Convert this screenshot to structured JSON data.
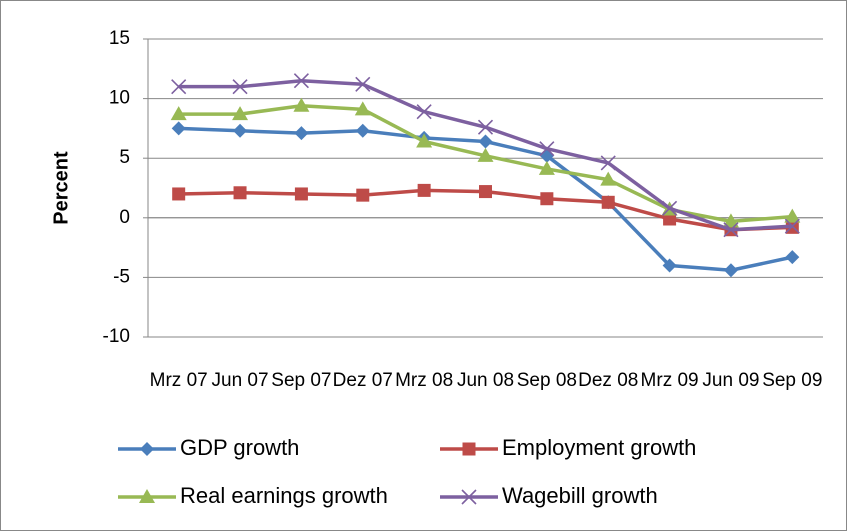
{
  "chart_data": {
    "type": "line",
    "categories": [
      "Mrz 07",
      "Jun 07",
      "Sep 07",
      "Dez 07",
      "Mrz 08",
      "Jun 08",
      "Sep 08",
      "Dez 08",
      "Mrz 09",
      "Jun 09",
      "Sep 09"
    ],
    "y_label": "Percent",
    "ylim": [
      -10,
      15
    ],
    "yticks": [
      -10,
      -5,
      0,
      5,
      10,
      15
    ],
    "grid": true,
    "series": [
      {
        "name": "GDP growth",
        "color": "#4a7ebb",
        "marker": "diamond",
        "values": [
          7.5,
          7.3,
          7.1,
          7.3,
          6.7,
          6.4,
          5.2,
          1.3,
          -4.0,
          -4.4,
          -3.3
        ]
      },
      {
        "name": "Employment growth",
        "color": "#be4b48",
        "marker": "square",
        "values": [
          2.0,
          2.1,
          2.0,
          1.9,
          2.3,
          2.2,
          1.6,
          1.3,
          -0.1,
          -1.0,
          -0.8
        ]
      },
      {
        "name": "Real earnings growth",
        "color": "#98b954",
        "marker": "triangle",
        "values": [
          8.7,
          8.7,
          9.4,
          9.1,
          6.4,
          5.2,
          4.1,
          3.2,
          0.7,
          -0.3,
          0.1
        ]
      },
      {
        "name": "Wagebill growth",
        "color": "#7d60a0",
        "marker": "x",
        "values": [
          11.0,
          11.0,
          11.5,
          11.2,
          8.9,
          7.6,
          5.8,
          4.6,
          0.8,
          -1.0,
          -0.7
        ]
      }
    ]
  }
}
